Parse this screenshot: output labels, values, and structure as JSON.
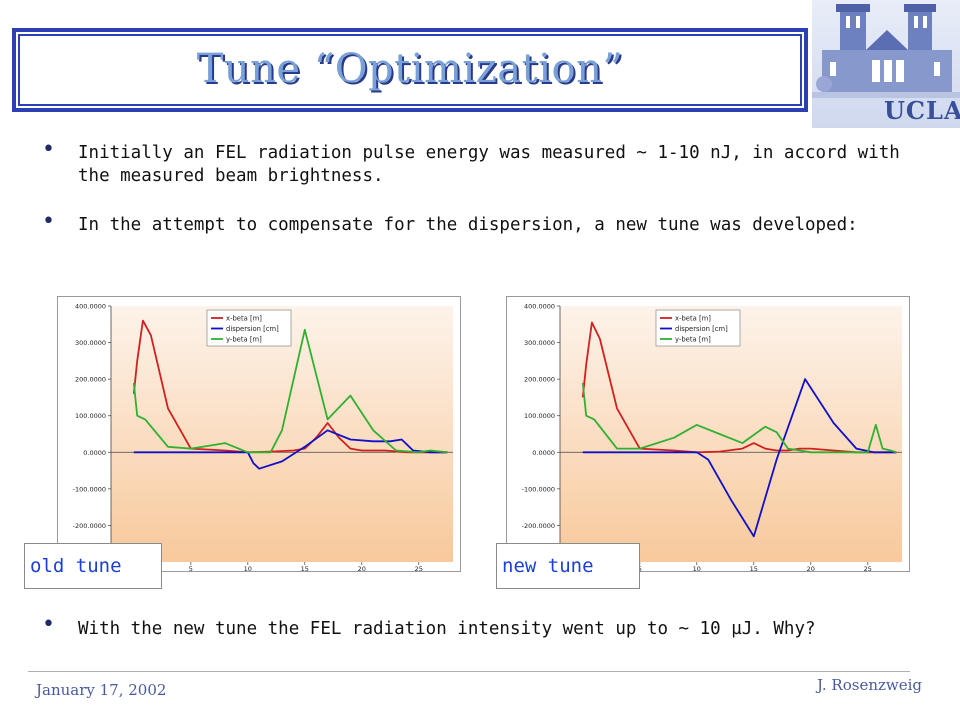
{
  "slide": {
    "title": "Tune “Optimization”",
    "bullets": [
      "Initially an FEL radiation pulse energy was measured ~ 1-10 nJ, in accord with the measured beam brightness.",
      "In the attempt to compensate for the dispersion, a new tune was developed:",
      "With the new tune the FEL radiation intensity went up to ~ 10 µJ. Why?"
    ],
    "bullet_glyph": "•",
    "logo_text": "UCLA",
    "footer_date": "January 17, 2002",
    "footer_author": "J. Rosenzweig"
  },
  "chart_data": [
    {
      "type": "line",
      "label": "old tune",
      "xlim": [
        -2,
        28
      ],
      "ylim": [
        -300,
        400
      ],
      "xticks": [
        5,
        10,
        15,
        20,
        25
      ],
      "yticks": [
        400,
        300,
        200,
        100,
        0,
        -100,
        -200
      ],
      "ytick_labels": [
        "400.0000",
        "300.0000",
        "200.0000",
        "100.0000",
        "0.0000",
        "-100.0000",
        "-200.0000"
      ],
      "legend": [
        "x-beta [m]",
        "dispersion [cm]",
        "y-beta [m]"
      ],
      "colors": [
        "#d02020",
        "#1010c8",
        "#30b030"
      ],
      "series": [
        {
          "name": "x-beta [m]",
          "x": [
            0,
            0.3,
            0.8,
            1.5,
            3,
            5,
            8,
            10,
            12,
            14,
            15,
            16,
            17,
            18,
            19,
            20,
            22,
            24,
            26,
            27.5
          ],
          "y": [
            160,
            250,
            360,
            320,
            120,
            10,
            5,
            0,
            2,
            5,
            10,
            40,
            80,
            40,
            10,
            5,
            5,
            0,
            0,
            0
          ]
        },
        {
          "name": "dispersion [cm]",
          "x": [
            0,
            5,
            8,
            10,
            10.5,
            11,
            13,
            15,
            17,
            19,
            21,
            22.5,
            23.5,
            24.5,
            26,
            27.5
          ],
          "y": [
            0,
            0,
            0,
            0,
            -30,
            -45,
            -25,
            15,
            60,
            35,
            30,
            30,
            35,
            5,
            0,
            0
          ]
        },
        {
          "name": "y-beta [m]",
          "x": [
            0,
            0.3,
            1,
            3,
            5,
            7,
            8,
            10,
            12,
            13,
            15,
            17,
            19,
            21,
            23,
            25,
            26,
            27.5
          ],
          "y": [
            190,
            100,
            90,
            15,
            10,
            20,
            25,
            0,
            0,
            60,
            335,
            90,
            155,
            60,
            5,
            0,
            5,
            0
          ]
        }
      ]
    },
    {
      "type": "line",
      "label": "new tune",
      "xlim": [
        -2,
        28
      ],
      "ylim": [
        -300,
        400
      ],
      "xticks": [
        5,
        10,
        15,
        20,
        25
      ],
      "yticks": [
        400,
        300,
        200,
        100,
        0,
        -100,
        -200
      ],
      "ytick_labels": [
        "400.0000",
        "300.0000",
        "200.0000",
        "100.0000",
        "0.0000",
        "-100.0000",
        "-200.0000"
      ],
      "legend": [
        "x-beta [m]",
        "dispersion [cm]",
        "y-beta [m]"
      ],
      "colors": [
        "#d02020",
        "#1010c8",
        "#30b030"
      ],
      "series": [
        {
          "name": "x-beta [m]",
          "x": [
            0,
            0.3,
            0.8,
            1.5,
            3,
            5,
            8,
            10,
            12,
            14,
            15,
            16,
            17,
            18,
            19,
            20,
            22,
            24,
            26,
            27.5
          ],
          "y": [
            150,
            240,
            355,
            310,
            120,
            10,
            5,
            0,
            2,
            10,
            25,
            10,
            5,
            5,
            10,
            10,
            5,
            0,
            0,
            0
          ]
        },
        {
          "name": "dispersion [cm]",
          "x": [
            0,
            5,
            8,
            10,
            11,
            13,
            15,
            17,
            19.5,
            22,
            24,
            25.5,
            27.5
          ],
          "y": [
            0,
            0,
            0,
            0,
            -20,
            -130,
            -230,
            -20,
            200,
            80,
            10,
            0,
            0
          ]
        },
        {
          "name": "y-beta [m]",
          "x": [
            0,
            0.3,
            1,
            3,
            5,
            8,
            10,
            12,
            14,
            16,
            17,
            18,
            20,
            23,
            25,
            25.7,
            26.3,
            27,
            27.5
          ],
          "y": [
            190,
            100,
            90,
            10,
            10,
            40,
            75,
            50,
            25,
            70,
            55,
            10,
            0,
            0,
            0,
            75,
            10,
            5,
            0
          ]
        }
      ]
    }
  ]
}
